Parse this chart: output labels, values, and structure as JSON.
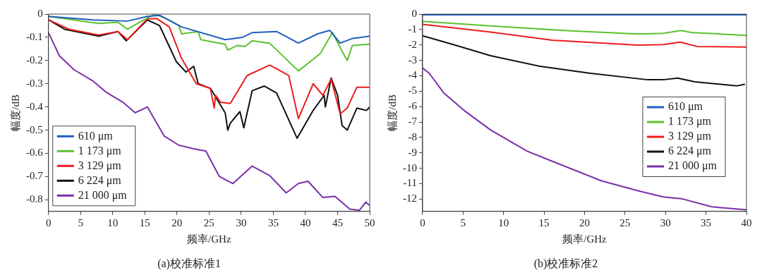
{
  "chart_data": [
    {
      "type": "line",
      "title": "(a)校准标准1",
      "xlabel": "频率/GHz",
      "ylabel": "幅度/dB",
      "xlim": [
        0,
        50
      ],
      "xticks": [
        0,
        5,
        10,
        15,
        20,
        25,
        30,
        35,
        40,
        45,
        50
      ],
      "ylim": [
        -0.85,
        0
      ],
      "yticks": [
        -0.8,
        -0.7,
        -0.6,
        -0.5,
        -0.4,
        -0.3,
        -0.2,
        -0.1,
        0
      ],
      "grid": false,
      "legend": "bottom left",
      "marker": "none",
      "line_style": "solid",
      "series": [
        {
          "name": "610 μm",
          "color": "#1f5fbf",
          "x": [
            0,
            7,
            12.3,
            15.4,
            17.3,
            20.7,
            27.5,
            30.2,
            31.7,
            35.5,
            38.9,
            41.9,
            43.8,
            45.4,
            47.3,
            50
          ],
          "values": [
            -0.01,
            -0.025,
            -0.03,
            -0.01,
            -0.005,
            -0.055,
            -0.11,
            -0.1,
            -0.08,
            -0.075,
            -0.125,
            -0.085,
            -0.07,
            -0.125,
            -0.105,
            -0.095
          ]
        },
        {
          "name": "1 173 μm",
          "color": "#5cc22e",
          "x": [
            0,
            7.8,
            10.8,
            12.3,
            13.9,
            16.5,
            18.4,
            20.3,
            20.7,
            23.3,
            23.7,
            27.5,
            27.9,
            29.4,
            30.6,
            31.7,
            34.4,
            38.9,
            42.3,
            44.2,
            45.7,
            46.5,
            47.3,
            50
          ],
          "values": [
            -0.01,
            -0.04,
            -0.035,
            -0.065,
            -0.04,
            0,
            -0.02,
            -0.05,
            -0.085,
            -0.075,
            -0.11,
            -0.13,
            -0.155,
            -0.135,
            -0.14,
            -0.115,
            -0.125,
            -0.245,
            -0.17,
            -0.08,
            -0.16,
            -0.2,
            -0.135,
            -0.13
          ]
        },
        {
          "name": "3 129 μm",
          "color": "#ee1c1c",
          "x": [
            0,
            3.2,
            7.8,
            10.8,
            12.3,
            15.4,
            16.9,
            18.8,
            20.7,
            23,
            25.2,
            25.8,
            26,
            26.8,
            28.3,
            30.9,
            34.4,
            35.5,
            37.4,
            38.9,
            41.2,
            42.7,
            44,
            45.4,
            46.5,
            48,
            50
          ],
          "values": [
            -0.025,
            -0.065,
            -0.09,
            -0.075,
            -0.11,
            -0.02,
            -0.02,
            -0.055,
            -0.19,
            -0.3,
            -0.32,
            -0.405,
            -0.35,
            -0.38,
            -0.385,
            -0.265,
            -0.22,
            -0.235,
            -0.265,
            -0.45,
            -0.3,
            -0.35,
            -0.28,
            -0.43,
            -0.405,
            -0.315,
            -0.315
          ]
        },
        {
          "name": "6 224 μm",
          "color": "#111111",
          "x": [
            0,
            2.5,
            7.8,
            10.8,
            12.1,
            15.4,
            17.3,
            19.9,
            21.4,
            22.6,
            23.3,
            25.2,
            27.5,
            27.9,
            28.3,
            29.8,
            30.4,
            31.7,
            33.6,
            35.5,
            38.7,
            41.2,
            42.9,
            43.1,
            44,
            45,
            45.7,
            46.5,
            48,
            49.5,
            50
          ],
          "values": [
            -0.025,
            -0.065,
            -0.095,
            -0.075,
            -0.115,
            -0.025,
            -0.05,
            -0.205,
            -0.25,
            -0.225,
            -0.3,
            -0.32,
            -0.425,
            -0.5,
            -0.47,
            -0.42,
            -0.49,
            -0.33,
            -0.31,
            -0.34,
            -0.535,
            -0.415,
            -0.35,
            -0.4,
            -0.275,
            -0.35,
            -0.48,
            -0.5,
            -0.405,
            -0.415,
            -0.4
          ]
        },
        {
          "name": "21 000 μm",
          "color": "#7b2fa8",
          "x": [
            0,
            1.7,
            4,
            7,
            8.9,
            11.6,
            13.5,
            15.4,
            18,
            20.3,
            22.6,
            24.5,
            26.6,
            28.7,
            31.7,
            34.4,
            37,
            38.9,
            40.4,
            42.7,
            44.6,
            46.9,
            48.4,
            49.4,
            50
          ],
          "values": [
            -0.08,
            -0.18,
            -0.24,
            -0.29,
            -0.335,
            -0.38,
            -0.425,
            -0.4,
            -0.525,
            -0.565,
            -0.58,
            -0.59,
            -0.7,
            -0.73,
            -0.655,
            -0.695,
            -0.77,
            -0.73,
            -0.72,
            -0.79,
            -0.785,
            -0.84,
            -0.845,
            -0.81,
            -0.825
          ]
        }
      ]
    },
    {
      "type": "line",
      "title": "(b)校准标准2",
      "xlabel": "频率/GHz",
      "ylabel": "幅度/dB",
      "xlim": [
        0,
        40
      ],
      "xticks": [
        0,
        5,
        10,
        15,
        20,
        25,
        30,
        35,
        40
      ],
      "ylim": [
        -12.8,
        0
      ],
      "yticks": [
        -12,
        -11,
        -10,
        -9,
        -8,
        -7,
        -6,
        -5,
        -4,
        -3,
        -2,
        -1,
        0
      ],
      "grid": false,
      "legend": "right",
      "marker": "none",
      "line_style": "solid",
      "series": [
        {
          "name": "610 μm",
          "color": "#1f5fbf",
          "x": [
            0,
            40
          ],
          "values": [
            -0.05,
            -0.05
          ]
        },
        {
          "name": "1 173 μm",
          "color": "#5cc22e",
          "x": [
            0,
            8.4,
            17.5,
            26.6,
            29.7,
            31.9,
            33.3,
            40
          ],
          "values": [
            -0.47,
            -0.77,
            -1.06,
            -1.29,
            -1.25,
            -1.06,
            -1.2,
            -1.38
          ]
        },
        {
          "name": "3 129 μm",
          "color": "#ee1c1c",
          "x": [
            0,
            8.4,
            16,
            26.6,
            29.7,
            31.8,
            33.9,
            40
          ],
          "values": [
            -0.66,
            -1.17,
            -1.69,
            -2.01,
            -1.98,
            -1.82,
            -2.1,
            -2.14
          ]
        },
        {
          "name": "6 224 μm",
          "color": "#111111",
          "x": [
            0,
            3.8,
            8.4,
            14.5,
            20.6,
            27.8,
            29.7,
            31.5,
            33.6,
            38.8,
            39.8
          ],
          "values": [
            -1.41,
            -1.98,
            -2.7,
            -3.39,
            -3.83,
            -4.26,
            -4.26,
            -4.15,
            -4.39,
            -4.66,
            -4.55
          ]
        },
        {
          "name": "21 000 μm",
          "color": "#7b2fa8",
          "x": [
            0,
            0.8,
            2.6,
            5.3,
            8.4,
            12.9,
            17.5,
            22.1,
            26.6,
            29.7,
            32.1,
            35.7,
            40
          ],
          "values": [
            -3.5,
            -3.83,
            -5.11,
            -6.32,
            -7.52,
            -8.89,
            -9.86,
            -10.82,
            -11.46,
            -11.86,
            -11.99,
            -12.5,
            -12.7
          ]
        }
      ]
    }
  ]
}
